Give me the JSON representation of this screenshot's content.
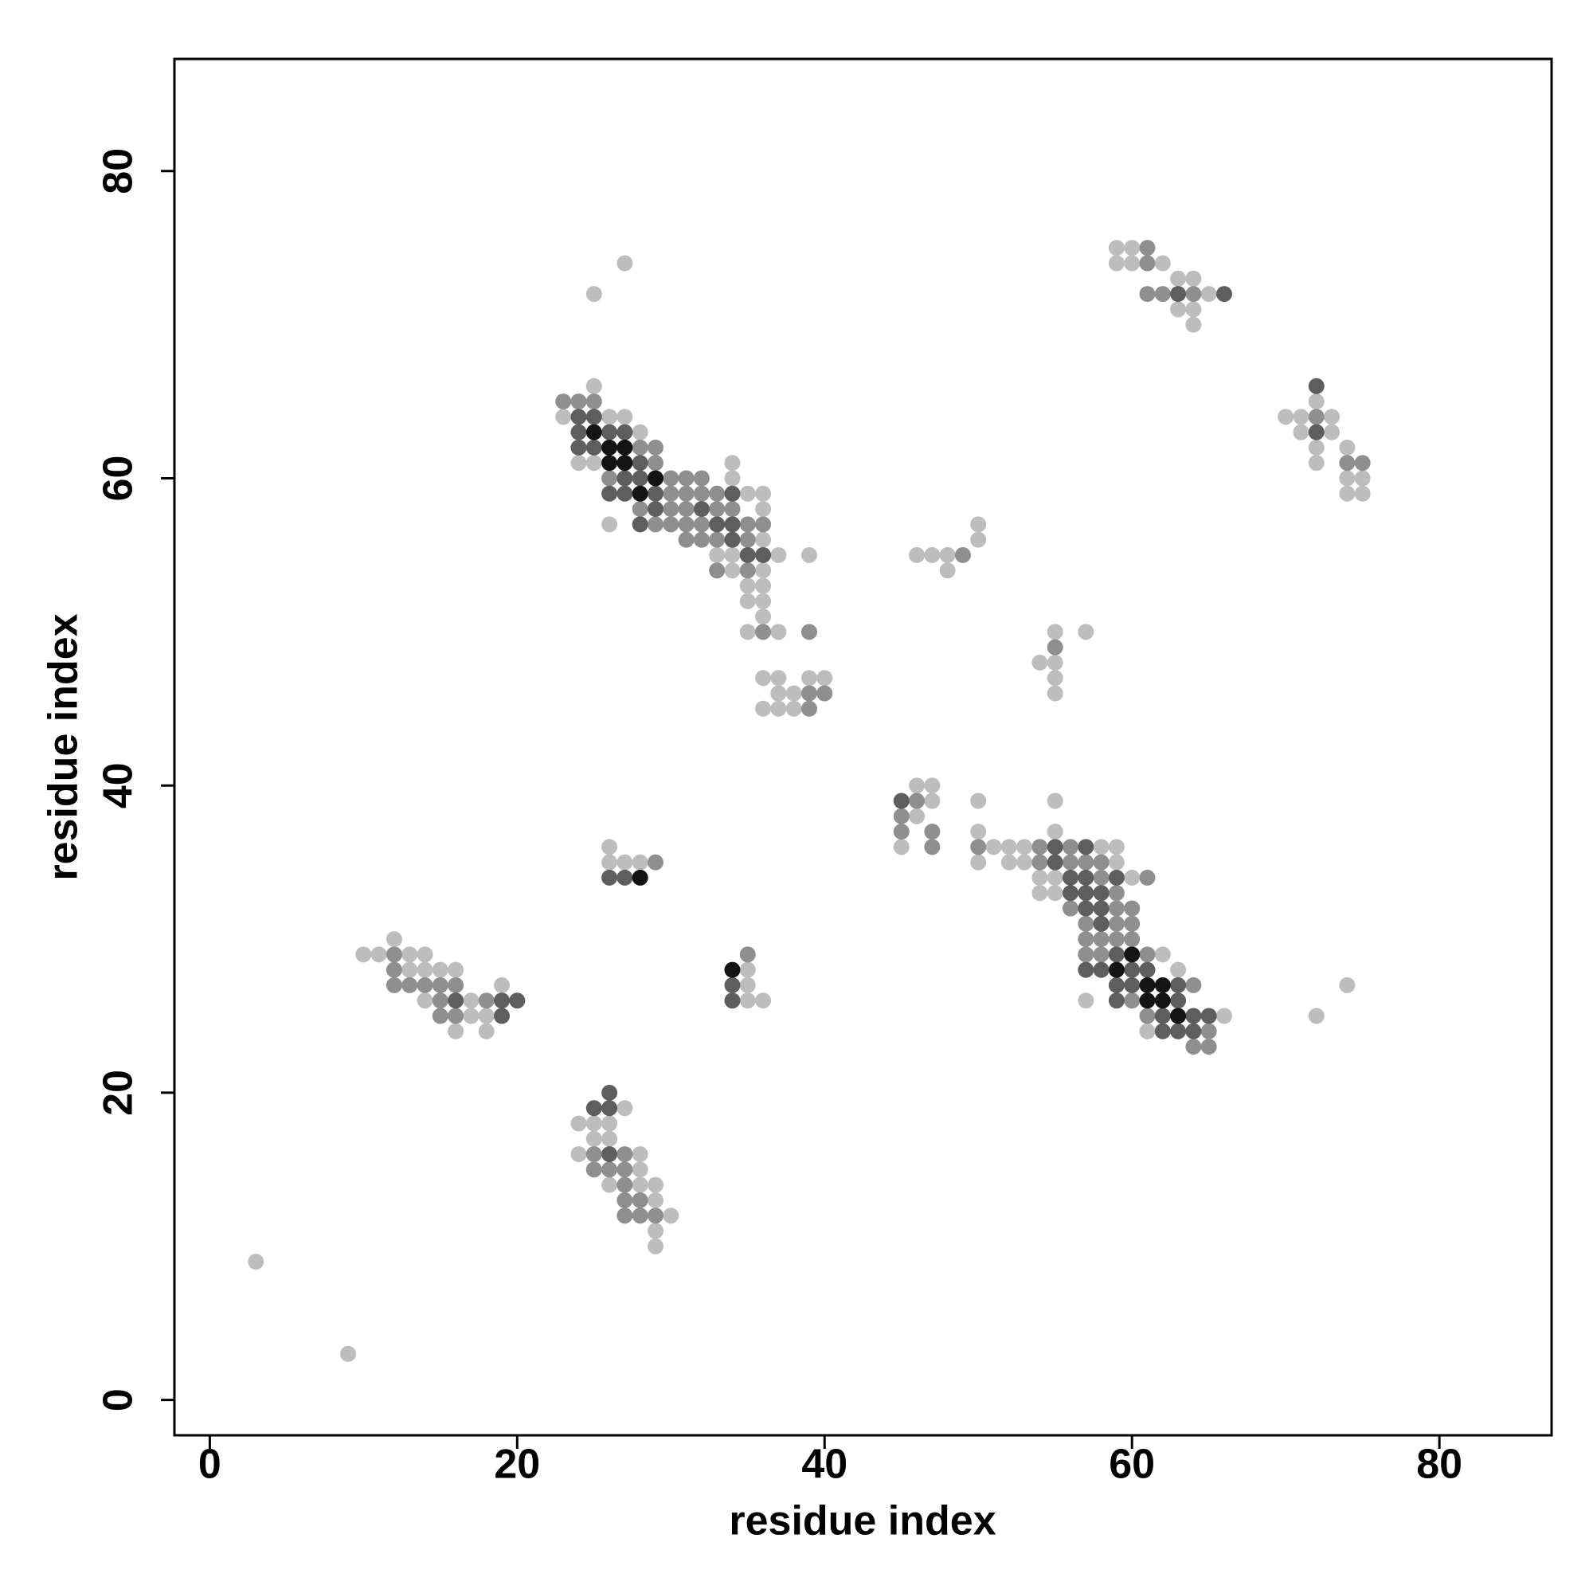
{
  "chart_data": {
    "type": "scatter",
    "xlabel": "residue index",
    "ylabel": "residue index",
    "xlim": [
      -2.3,
      87.3
    ],
    "ylim": [
      -2.3,
      87.3
    ],
    "xticks": [
      0,
      20,
      40,
      60,
      80
    ],
    "yticks": [
      0,
      20,
      40,
      60,
      80
    ],
    "grid": false,
    "series": [
      {
        "color": "#bdbdbd",
        "x": [
          3,
          9,
          25,
          27,
          59,
          60,
          59,
          60,
          62,
          63,
          64,
          65,
          63,
          64,
          64,
          72,
          70,
          71,
          73,
          71,
          73,
          72,
          74,
          72,
          74,
          75,
          74,
          75,
          25,
          23,
          26,
          27,
          28,
          24,
          25,
          34,
          34,
          35,
          36,
          36,
          26,
          36,
          33,
          34,
          37,
          39,
          34,
          36,
          35,
          36,
          35,
          36,
          36,
          35,
          37,
          36,
          37,
          39,
          40,
          37,
          38,
          36,
          37,
          38,
          50,
          50,
          46,
          47,
          48,
          48,
          55,
          57,
          54,
          55,
          55,
          55,
          46,
          47,
          47,
          50,
          46,
          50,
          45,
          55,
          55,
          51,
          52,
          53,
          58,
          59,
          50,
          52,
          53,
          59,
          54,
          55,
          60,
          54,
          55,
          62,
          63,
          57,
          66,
          61,
          72,
          74,
          12,
          10,
          11,
          13,
          14,
          13,
          14,
          15,
          16,
          19,
          14,
          17,
          17,
          18,
          16,
          18,
          26,
          26,
          27,
          28,
          35,
          35,
          35,
          36,
          27,
          24,
          25,
          26,
          25,
          26,
          24,
          28,
          28,
          26,
          28,
          29,
          29,
          30,
          29,
          29
        ],
        "y": [
          9,
          3,
          72,
          74,
          75,
          75,
          74,
          74,
          74,
          73,
          73,
          72,
          71,
          71,
          70,
          65,
          64,
          64,
          64,
          63,
          63,
          62,
          62,
          61,
          60,
          60,
          59,
          59,
          66,
          64,
          64,
          64,
          63,
          61,
          61,
          61,
          60,
          59,
          59,
          58,
          57,
          56,
          55,
          55,
          55,
          55,
          54,
          54,
          53,
          53,
          52,
          52,
          51,
          50,
          50,
          47,
          47,
          47,
          47,
          46,
          46,
          45,
          45,
          45,
          57,
          56,
          55,
          55,
          55,
          54,
          50,
          50,
          48,
          48,
          47,
          46,
          40,
          40,
          39,
          39,
          38,
          37,
          36,
          39,
          37,
          36,
          36,
          36,
          36,
          36,
          35,
          35,
          35,
          35,
          34,
          34,
          34,
          33,
          33,
          29,
          28,
          26,
          25,
          24,
          25,
          27,
          30,
          29,
          29,
          29,
          29,
          28,
          28,
          28,
          28,
          27,
          26,
          26,
          25,
          25,
          24,
          24,
          36,
          35,
          35,
          35,
          28,
          27,
          26,
          26,
          19,
          18,
          18,
          18,
          17,
          17,
          16,
          16,
          15,
          14,
          14,
          14,
          13,
          12,
          11,
          10
        ]
      },
      {
        "color": "#8f8f8f",
        "x": [
          61,
          61,
          61,
          62,
          64,
          72,
          74,
          75,
          23,
          24,
          25,
          28,
          29,
          29,
          26,
          30,
          31,
          32,
          30,
          31,
          32,
          33,
          28,
          30,
          31,
          33,
          34,
          29,
          30,
          31,
          32,
          35,
          36,
          31,
          32,
          33,
          35,
          33,
          35,
          36,
          39,
          39,
          40,
          39,
          49,
          55,
          46,
          45,
          45,
          47,
          47,
          50,
          54,
          56,
          54,
          56,
          57,
          58,
          58,
          61,
          59,
          56,
          59,
          60,
          57,
          59,
          60,
          57,
          58,
          59,
          60,
          57,
          58,
          61,
          64,
          60,
          61,
          65,
          64,
          65,
          12,
          12,
          12,
          13,
          14,
          15,
          16,
          15,
          18,
          15,
          16,
          29,
          35,
          25,
          27,
          25,
          26,
          27,
          27,
          27,
          28,
          27,
          28,
          29
        ],
        "y": [
          75,
          74,
          72,
          72,
          72,
          64,
          61,
          61,
          65,
          65,
          65,
          62,
          62,
          61,
          60,
          60,
          60,
          60,
          59,
          59,
          59,
          59,
          58,
          58,
          58,
          58,
          58,
          57,
          57,
          57,
          57,
          57,
          57,
          56,
          56,
          56,
          56,
          54,
          54,
          50,
          50,
          46,
          46,
          45,
          55,
          49,
          39,
          38,
          37,
          37,
          36,
          36,
          36,
          36,
          35,
          35,
          35,
          35,
          34,
          34,
          33,
          32,
          32,
          32,
          31,
          31,
          31,
          30,
          30,
          30,
          30,
          29,
          29,
          29,
          27,
          26,
          25,
          24,
          23,
          23,
          29,
          28,
          27,
          27,
          27,
          27,
          27,
          26,
          26,
          25,
          25,
          35,
          29,
          16,
          16,
          15,
          15,
          15,
          14,
          13,
          13,
          12,
          12,
          12
        ]
      },
      {
        "color": "#5e5e5e",
        "x": [
          63,
          66,
          72,
          72,
          24,
          25,
          24,
          26,
          27,
          24,
          25,
          28,
          27,
          28,
          26,
          27,
          29,
          34,
          29,
          32,
          28,
          33,
          34,
          34,
          35,
          36,
          45,
          55,
          57,
          55,
          56,
          57,
          59,
          56,
          57,
          58,
          57,
          58,
          58,
          59,
          57,
          58,
          60,
          61,
          59,
          60,
          63,
          59,
          63,
          62,
          64,
          65,
          62,
          63,
          64,
          16,
          19,
          20,
          19,
          26,
          27,
          34,
          34,
          26,
          25,
          26,
          26
        ],
        "y": [
          72,
          72,
          66,
          63,
          64,
          64,
          63,
          63,
          63,
          62,
          62,
          61,
          60,
          60,
          59,
          59,
          59,
          59,
          58,
          58,
          57,
          57,
          57,
          56,
          55,
          55,
          39,
          36,
          36,
          35,
          34,
          34,
          34,
          33,
          33,
          33,
          32,
          32,
          31,
          29,
          28,
          28,
          28,
          28,
          27,
          27,
          27,
          26,
          26,
          25,
          25,
          25,
          24,
          24,
          24,
          26,
          26,
          26,
          25,
          34,
          34,
          27,
          26,
          20,
          19,
          19,
          16
        ]
      },
      {
        "color": "#141414",
        "x": [
          25,
          26,
          27,
          26,
          27,
          29,
          28,
          60,
          59,
          61,
          62,
          61,
          62,
          63,
          28,
          34
        ],
        "y": [
          63,
          62,
          62,
          61,
          61,
          60,
          59,
          29,
          28,
          27,
          27,
          26,
          26,
          25,
          34,
          28
        ]
      }
    ]
  }
}
